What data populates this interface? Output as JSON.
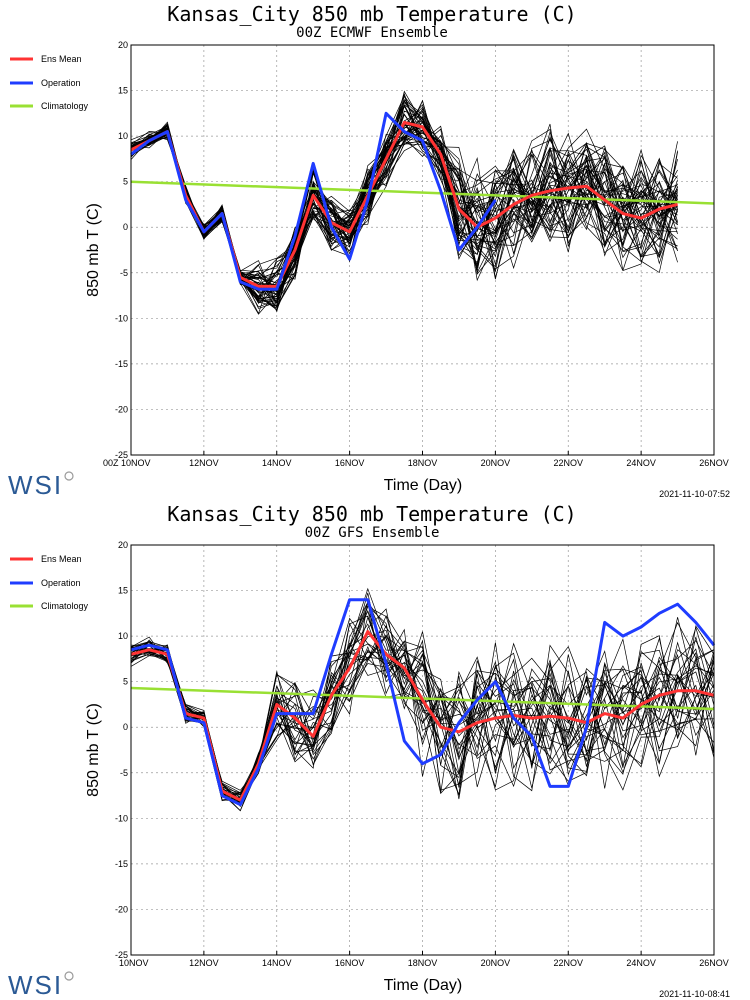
{
  "logo": {
    "text": "WSI",
    "color": "#2b5a95"
  },
  "colors": {
    "members": "#000000",
    "ens_mean": "#ff3333",
    "operation": "#1f3cff",
    "climatology": "#99e033",
    "grid": "#9a9a9a"
  },
  "chart_data": [
    {
      "type": "line",
      "title": "Kansas_City 850 mb Temperature (C)",
      "subtitle": "00Z ECMWF Ensemble",
      "xlabel": "Time (Day)",
      "ylabel": "850 mb T (C)",
      "xlim": [
        0,
        16
      ],
      "ylim": [
        -25,
        20
      ],
      "yticks": [
        20,
        15,
        10,
        5,
        0,
        -5,
        -10,
        -15,
        -20,
        -25
      ],
      "xticks": [
        {
          "x": 0,
          "label": "00Z 10NOV"
        },
        {
          "x": 2,
          "label": "12NOV"
        },
        {
          "x": 4,
          "label": "14NOV"
        },
        {
          "x": 6,
          "label": "16NOV"
        },
        {
          "x": 8,
          "label": "18NOV"
        },
        {
          "x": 10,
          "label": "20NOV"
        },
        {
          "x": 12,
          "label": "22NOV"
        },
        {
          "x": 14,
          "label": "24NOV"
        },
        {
          "x": 16,
          "label": "26NOV"
        }
      ],
      "grid": true,
      "legend": {
        "position": "left",
        "entries": [
          "Ens Mean",
          "Operation",
          "Climatology"
        ]
      },
      "timestamp": "2021-11-10-07:52",
      "members": {
        "count": 50,
        "spread_note": "ensemble member traces"
      },
      "series": [
        {
          "name": "Ens Mean",
          "x": [
            0,
            0.5,
            1,
            1.5,
            2,
            2.5,
            3,
            3.5,
            4,
            4.5,
            5,
            5.5,
            6,
            6.5,
            7,
            7.5,
            8,
            8.5,
            9,
            9.5,
            10,
            10.5,
            11,
            11.5,
            12,
            12.5,
            13,
            13.5,
            14,
            14.5,
            15
          ],
          "values": [
            8.5,
            9.5,
            10.5,
            3.5,
            -0.5,
            1.5,
            -5.5,
            -6.5,
            -6.5,
            -2.5,
            3.5,
            0.5,
            -0.5,
            3.5,
            7.5,
            11.5,
            11.0,
            8.0,
            2.0,
            0.0,
            1.0,
            2.5,
            3.5,
            4.0,
            4.3,
            4.5,
            3.0,
            1.5,
            1.0,
            2.0,
            2.5
          ]
        },
        {
          "name": "Operation",
          "x": [
            0,
            0.5,
            1,
            1.5,
            2,
            2.5,
            3,
            3.5,
            4,
            4.5,
            5,
            5.5,
            6,
            6.5,
            7,
            7.5,
            8,
            8.5,
            9,
            9.5,
            10
          ],
          "values": [
            8.0,
            9.5,
            10.5,
            3.0,
            -0.5,
            1.5,
            -6.0,
            -6.8,
            -6.8,
            -1.0,
            7.0,
            0.0,
            -3.5,
            3.0,
            12.5,
            10.5,
            9.5,
            4.0,
            -2.5,
            0.0,
            3.0
          ]
        },
        {
          "name": "Climatology",
          "x": [
            0,
            16
          ],
          "values": [
            5.0,
            2.6
          ]
        }
      ]
    },
    {
      "type": "line",
      "title": "Kansas_City 850 mb Temperature (C)",
      "subtitle": "00Z GFS Ensemble",
      "xlabel": "Time (Day)",
      "ylabel": "850 mb T (C)",
      "xlim": [
        0,
        16
      ],
      "ylim": [
        -25,
        20
      ],
      "yticks": [
        20,
        15,
        10,
        5,
        0,
        -5,
        -10,
        -15,
        -20,
        -25
      ],
      "xticks": [
        {
          "x": 0,
          "label": "10NOV"
        },
        {
          "x": 2,
          "label": "12NOV"
        },
        {
          "x": 4,
          "label": "14NOV"
        },
        {
          "x": 6,
          "label": "16NOV"
        },
        {
          "x": 8,
          "label": "18NOV"
        },
        {
          "x": 10,
          "label": "20NOV"
        },
        {
          "x": 12,
          "label": "22NOV"
        },
        {
          "x": 14,
          "label": "24NOV"
        },
        {
          "x": 16,
          "label": "26NOV"
        }
      ],
      "grid": true,
      "legend": {
        "position": "left",
        "entries": [
          "Ens Mean",
          "Operation",
          "Climatology"
        ]
      },
      "timestamp": "2021-11-10-08:41",
      "members": {
        "count": 30,
        "spread_note": "ensemble member traces"
      },
      "series": [
        {
          "name": "Ens Mean",
          "x": [
            0,
            0.5,
            1,
            1.5,
            2,
            2.5,
            3,
            3.5,
            4,
            4.5,
            5,
            5.5,
            6,
            6.5,
            7,
            7.5,
            8,
            8.5,
            9,
            9.5,
            10,
            10.5,
            11,
            11.5,
            12,
            12.5,
            13,
            13.5,
            14,
            14.5,
            15,
            15.5,
            16
          ],
          "values": [
            8.0,
            8.5,
            8.0,
            1.5,
            1.0,
            -7.0,
            -8.0,
            -4.0,
            2.5,
            1.0,
            -1.0,
            3.5,
            6.5,
            10.5,
            8.0,
            6.5,
            3.0,
            0.0,
            -0.5,
            0.5,
            1.0,
            1.3,
            1.0,
            1.2,
            1.0,
            0.5,
            1.5,
            1.0,
            2.5,
            3.5,
            4.0,
            4.0,
            3.5
          ]
        },
        {
          "name": "Operation",
          "x": [
            0,
            0.5,
            1,
            1.5,
            2,
            2.5,
            3,
            3.5,
            4,
            4.5,
            5,
            5.5,
            6,
            6.5,
            7,
            7.5,
            8,
            8.5,
            9,
            9.5,
            10,
            10.5,
            11,
            11.5,
            12,
            12.5,
            13,
            13.5,
            14,
            14.5,
            15,
            15.5,
            16
          ],
          "values": [
            8.5,
            9.0,
            8.5,
            1.0,
            0.5,
            -7.5,
            -8.5,
            -4.5,
            1.5,
            1.5,
            1.5,
            8.0,
            14.0,
            14.0,
            7.0,
            -1.5,
            -4.0,
            -3.0,
            0.5,
            3.0,
            5.0,
            1.0,
            -1.0,
            -6.5,
            -6.5,
            0.0,
            11.5,
            10.0,
            11.0,
            12.5,
            13.5,
            11.5,
            9.0
          ]
        },
        {
          "name": "Climatology",
          "x": [
            0,
            16
          ],
          "values": [
            4.3,
            2.0
          ]
        }
      ]
    }
  ]
}
